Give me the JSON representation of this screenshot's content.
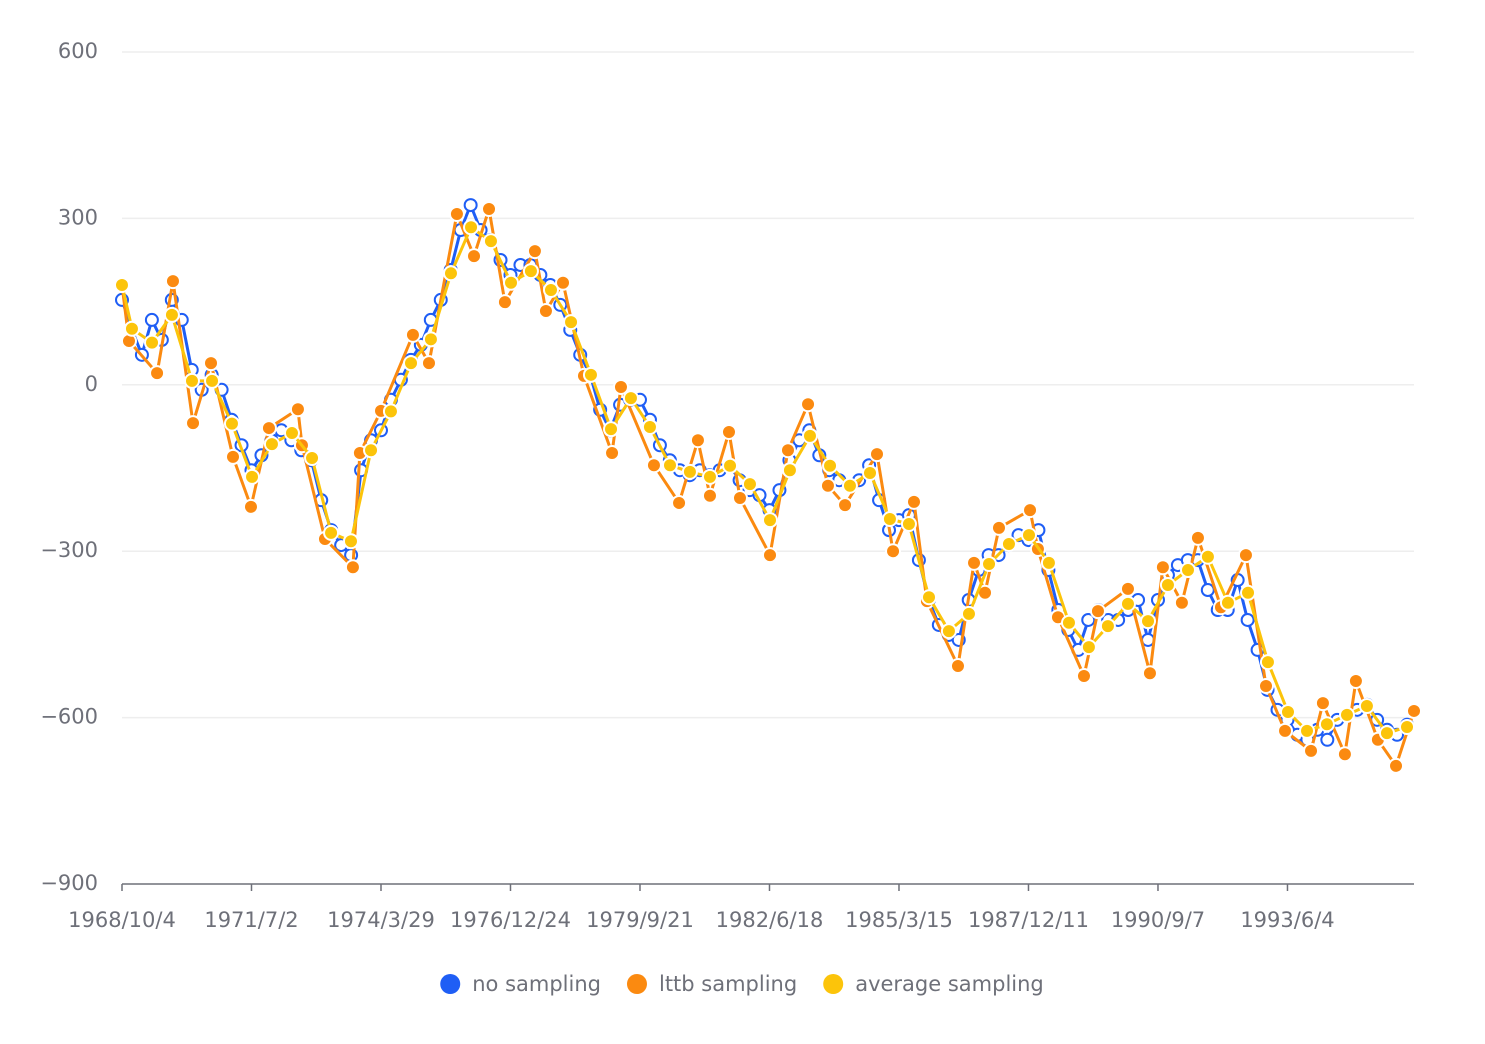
{
  "chart_data": {
    "type": "line",
    "xlim": [
      0,
      9987
    ],
    "xticks": [
      {
        "value": 0,
        "label": "1968/10/4"
      },
      {
        "value": 1001,
        "label": "1971/7/2"
      },
      {
        "value": 2002,
        "label": "1974/3/29"
      },
      {
        "value": 3003,
        "label": "1976/12/24"
      },
      {
        "value": 4004,
        "label": "1979/9/21"
      },
      {
        "value": 5005,
        "label": "1982/6/18"
      },
      {
        "value": 6006,
        "label": "1985/3/15"
      },
      {
        "value": 7007,
        "label": "1987/12/11"
      },
      {
        "value": 8008,
        "label": "1990/9/7"
      },
      {
        "value": 9009,
        "label": "1993/6/4"
      }
    ],
    "ylim": [
      -900,
      600
    ],
    "yticks": [
      {
        "value": -900,
        "label": "−900"
      },
      {
        "value": -600,
        "label": "−600"
      },
      {
        "value": -300,
        "label": "−300"
      },
      0,
      300,
      600
    ],
    "grid": true,
    "legend": "bottom",
    "series": [
      {
        "name": "no sampling",
        "color": "#1f5ef5",
        "x": [
          0,
          77,
          154,
          231,
          308,
          385,
          462,
          539,
          616,
          693,
          770,
          847,
          924,
          1001,
          1078,
          1155,
          1232,
          1309,
          1386,
          1463,
          1540,
          1617,
          1694,
          1771,
          1848,
          1925,
          2002,
          2079,
          2156,
          2233,
          2310,
          2387,
          2464,
          2541,
          2618,
          2695,
          2772,
          2849,
          2926,
          3003,
          3080,
          3157,
          3234,
          3311,
          3388,
          3465,
          3542,
          3619,
          3696,
          3773,
          3850,
          3927,
          4004,
          4081,
          4158,
          4235,
          4312,
          4389,
          4466,
          4543,
          4620,
          4697,
          4774,
          4851,
          4928,
          5005,
          5082,
          5159,
          5236,
          5313,
          5390,
          5467,
          5544,
          5621,
          5698,
          5775,
          5852,
          5929,
          6006,
          6083,
          6160,
          6237,
          6314,
          6391,
          6468,
          6545,
          6622,
          6699,
          6776,
          6853,
          6930,
          7007,
          7084,
          7161,
          7238,
          7315,
          7392,
          7469,
          7546,
          7623,
          7700,
          7777,
          7854,
          7931,
          8008,
          8085,
          8162,
          8239,
          8316,
          8393,
          8470,
          8547,
          8624,
          8701,
          8778,
          8855,
          8932,
          9009,
          9086,
          9163,
          9240,
          9317,
          9394,
          9471,
          9548,
          9625,
          9702,
          9779,
          9856,
          9933
        ],
        "values": [
          153,
          99,
          54,
          117,
          81,
          153,
          117,
          27,
          -9,
          18,
          -9,
          -63,
          -109,
          -154,
          -127,
          -100,
          -82,
          -100,
          -118,
          -136,
          -208,
          -262,
          -289,
          -307,
          -154,
          -100,
          -82,
          -27,
          9,
          45,
          72,
          117,
          153,
          207,
          279,
          324,
          279,
          261,
          225,
          198,
          216,
          216,
          198,
          180,
          144,
          99,
          54,
          18,
          -45,
          -82,
          -36,
          -27,
          -27,
          -63,
          -109,
          -136,
          -154,
          -163,
          -154,
          -163,
          -154,
          -145,
          -172,
          -190,
          -199,
          -226,
          -190,
          -136,
          -100,
          -82,
          -127,
          -154,
          -172,
          -181,
          -172,
          -145,
          -208,
          -262,
          -244,
          -235,
          -316,
          -388,
          -433,
          -451,
          -460,
          -388,
          -334,
          -307,
          -307,
          -289,
          -271,
          -280,
          -262,
          -334,
          -406,
          -442,
          -478,
          -424,
          -406,
          -424,
          -424,
          -406,
          -388,
          -460,
          -388,
          -343,
          -325,
          -316,
          -316,
          -370,
          -406,
          -406,
          -352,
          -424,
          -478,
          -550,
          -586,
          -604,
          -631,
          -640,
          -622,
          -640,
          -604,
          -595,
          -586,
          -577,
          -604,
          -622,
          -631,
          -613
        ]
      },
      {
        "name": "lttb sampling",
        "color": "#fb8a10",
        "x": [
          0,
          54,
          271,
          394,
          549,
          688,
          858,
          997,
          1136,
          1360,
          1391,
          1569,
          1785,
          1839,
          2002,
          2249,
          2373,
          2589,
          2721,
          2837,
          2960,
          3192,
          3277,
          3409,
          3571,
          3788,
          3857,
          4112,
          4306,
          4452,
          4545,
          4692,
          4777,
          5009,
          5148,
          5303,
          5457,
          5589,
          5836,
          5960,
          6122,
          6222,
          6462,
          6586,
          6671,
          6779,
          7019,
          7080,
          7235,
          7436,
          7544,
          7776,
          7946,
          8046,
          8193,
          8317,
          8495,
          8688,
          8843,
          8990,
          9191,
          9283,
          9453,
          9538,
          9708,
          9848,
          9987
        ],
        "values": [
          180,
          79,
          21,
          187,
          -69,
          39,
          -130,
          -220,
          -78,
          -44,
          -109,
          -278,
          -329,
          -123,
          -47,
          90,
          39,
          308,
          232,
          317,
          149,
          241,
          133,
          184,
          16,
          -123,
          -4,
          -145,
          -213,
          -100,
          -200,
          -85,
          -204,
          -307,
          -118,
          -35,
          -182,
          -217,
          -125,
          -300,
          -211,
          -390,
          -507,
          -321,
          -375,
          -258,
          -226,
          -296,
          -419,
          -525,
          -408,
          -368,
          -520,
          -329,
          -393,
          -276,
          -401,
          -307,
          -543,
          -624,
          -660,
          -574,
          -666,
          -534,
          -640,
          -687,
          -588
        ]
      },
      {
        "name": "average sampling",
        "color": "#fcc40a",
        "x": [
          0,
          77,
          232,
          386,
          541,
          696,
          850,
          1005,
          1159,
          1314,
          1469,
          1616,
          1770,
          1925,
          2079,
          2234,
          2388,
          2543,
          2698,
          2852,
          3007,
          3161,
          3316,
          3471,
          3625,
          3780,
          3934,
          4081,
          4236,
          4390,
          4545,
          4700,
          4854,
          5009,
          5163,
          5318,
          5473,
          5627,
          5782,
          5936,
          6083,
          6238,
          6392,
          6547,
          6702,
          6856,
          7011,
          7165,
          7320,
          7474,
          7621,
          7776,
          7931,
          8085,
          8240,
          8394,
          8549,
          8704,
          8858,
          9013,
          9160,
          9314,
          9469,
          9623,
          9778,
          9933
        ],
        "values": [
          180,
          101,
          76,
          126,
          7,
          7,
          -70,
          -166,
          -107,
          -87,
          -132,
          -267,
          -282,
          -118,
          -48,
          39,
          82,
          201,
          284,
          259,
          184,
          205,
          171,
          113,
          18,
          -80,
          -24,
          -76,
          -145,
          -157,
          -166,
          -146,
          -179,
          -244,
          -154,
          -92,
          -146,
          -182,
          -159,
          -242,
          -251,
          -383,
          -444,
          -413,
          -323,
          -287,
          -271,
          -321,
          -429,
          -473,
          -435,
          -395,
          -426,
          -361,
          -334,
          -310,
          -393,
          -375,
          -500,
          -590,
          -624,
          -612,
          -595,
          -579,
          -628,
          -617
        ]
      }
    ]
  }
}
